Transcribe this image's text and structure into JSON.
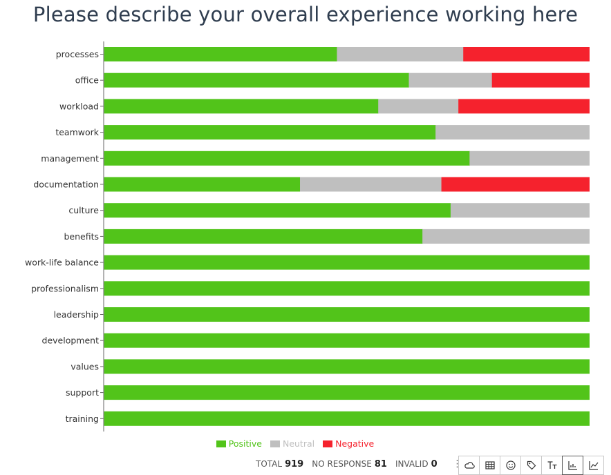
{
  "title": "Please describe your overall experience working here",
  "chart_data": {
    "type": "bar",
    "orientation": "horizontal",
    "stacked": true,
    "categories": [
      "processes",
      "office",
      "workload",
      "teamwork",
      "management",
      "documentation",
      "culture",
      "benefits",
      "work-life balance",
      "professionalism",
      "leadership",
      "development",
      "values",
      "support",
      "training"
    ],
    "series": [
      {
        "name": "Positive",
        "color": "#52c41a",
        "values": [
          48,
          62.8,
          56.5,
          68.3,
          75.3,
          40.4,
          71.4,
          65.6,
          100,
          100,
          100,
          100,
          100,
          100,
          100
        ]
      },
      {
        "name": "Neutral",
        "color": "#bfbfbf",
        "values": [
          26,
          17.1,
          16.5,
          31.7,
          24.7,
          29.1,
          28.6,
          34.4,
          0,
          0,
          0,
          0,
          0,
          0,
          0
        ]
      },
      {
        "name": "Negative",
        "color": "#f5222d",
        "values": [
          26,
          20.1,
          27,
          0,
          0,
          30.5,
          0,
          0,
          0,
          0,
          0,
          0,
          0,
          0,
          0
        ]
      }
    ],
    "xlim": [
      0,
      100
    ],
    "grid": false,
    "legend": "bottom"
  },
  "footer": {
    "total_label": "TOTAL",
    "total_value": "919",
    "noresponse_label": "NO RESPONSE",
    "noresponse_value": "81",
    "invalid_label": "INVALID",
    "invalid_value": "0",
    "more_glyph": "⋮"
  },
  "toolbar": {
    "tools": [
      "cloud-icon",
      "table-icon",
      "smiley-icon",
      "tag-icon",
      "text-size-icon",
      "bar-chart-icon",
      "line-chart-icon"
    ],
    "active": "bar-chart-icon"
  }
}
